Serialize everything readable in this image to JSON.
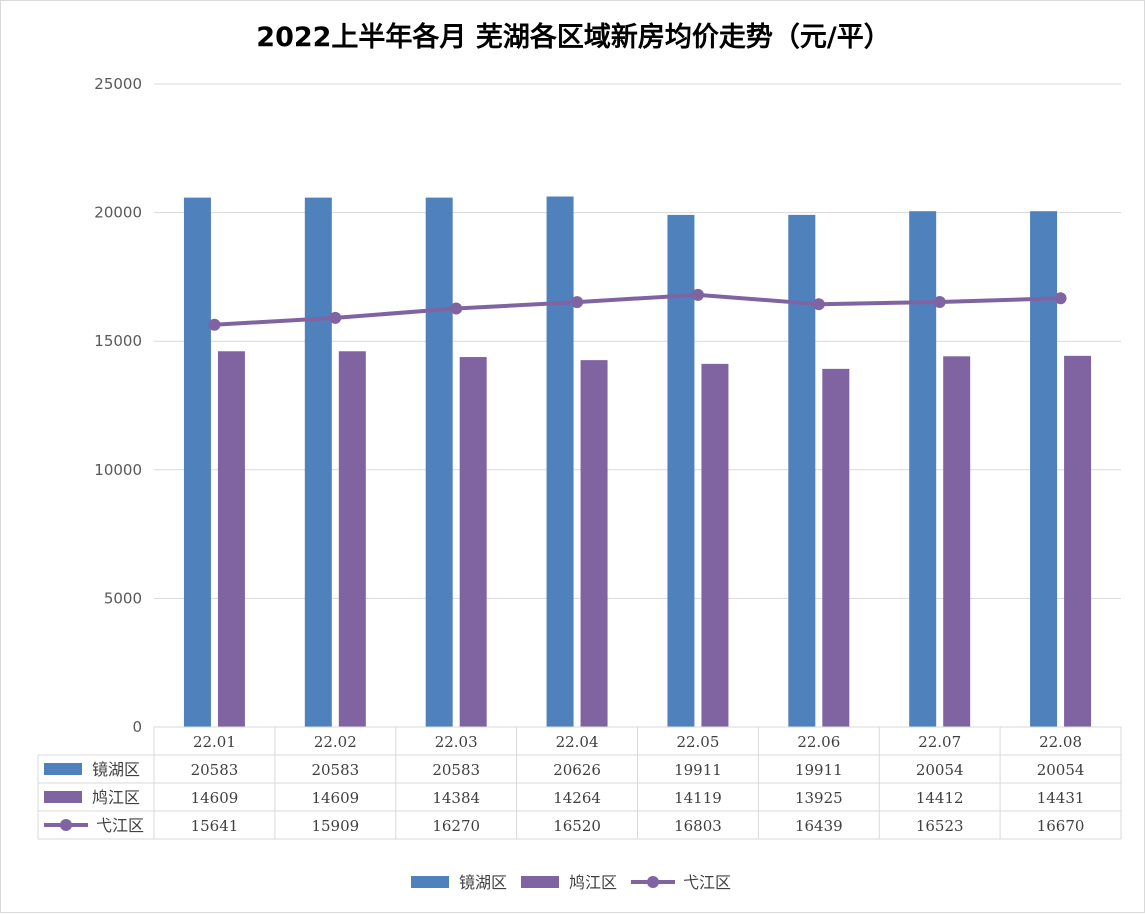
{
  "chart_data": {
    "type": "bar",
    "title": "2022上半年各月 芜湖各区域新房均价走势（元/平）",
    "categories": [
      "22.01",
      "22.02",
      "22.03",
      "22.04",
      "22.05",
      "22.06",
      "22.07",
      "22.08"
    ],
    "ylim": [
      0,
      25000
    ],
    "yticks": [
      0,
      5000,
      10000,
      15000,
      20000,
      25000
    ],
    "grid": true,
    "legend_position": "bottom",
    "data_table": true,
    "series": [
      {
        "name": "镜湖区",
        "type": "bar",
        "color": "#4f81bd",
        "values": [
          20583,
          20583,
          20583,
          20626,
          19911,
          19911,
          20054,
          20054
        ]
      },
      {
        "name": "鸠江区",
        "type": "bar",
        "color": "#8064a2",
        "values": [
          14609,
          14609,
          14384,
          14264,
          14119,
          13925,
          14412,
          14431
        ]
      },
      {
        "name": "弋江区",
        "type": "line",
        "color": "#8064a2",
        "values": [
          15641,
          15909,
          16270,
          16520,
          16803,
          16439,
          16523,
          16670
        ]
      }
    ]
  }
}
